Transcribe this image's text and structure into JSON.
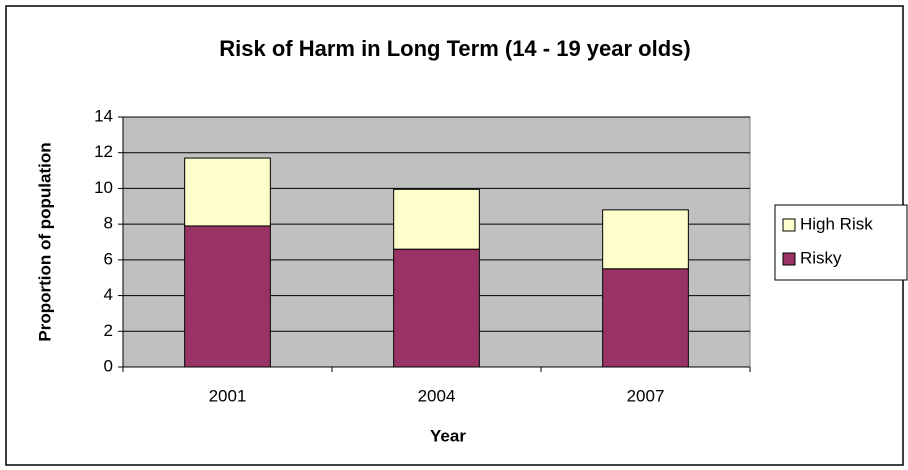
{
  "chart_data": {
    "type": "bar",
    "stacked": true,
    "title": "Risk of Harm in Long Term (14 - 19 year olds)",
    "x_label": "Year",
    "y_label": "Proportion of population",
    "categories": [
      "2001",
      "2004",
      "2007"
    ],
    "series": [
      {
        "name": "Risky",
        "color": "#993366",
        "values": [
          7.9,
          6.6,
          5.5
        ]
      },
      {
        "name": "High Risk",
        "color": "#ffffcc",
        "values": [
          3.8,
          3.35,
          3.3
        ]
      }
    ],
    "ylim": [
      0,
      14
    ],
    "yticks": [
      0,
      2,
      4,
      6,
      8,
      10,
      12,
      14
    ],
    "grid": true,
    "plot_background": "#c0c0c0",
    "legend": "right"
  }
}
